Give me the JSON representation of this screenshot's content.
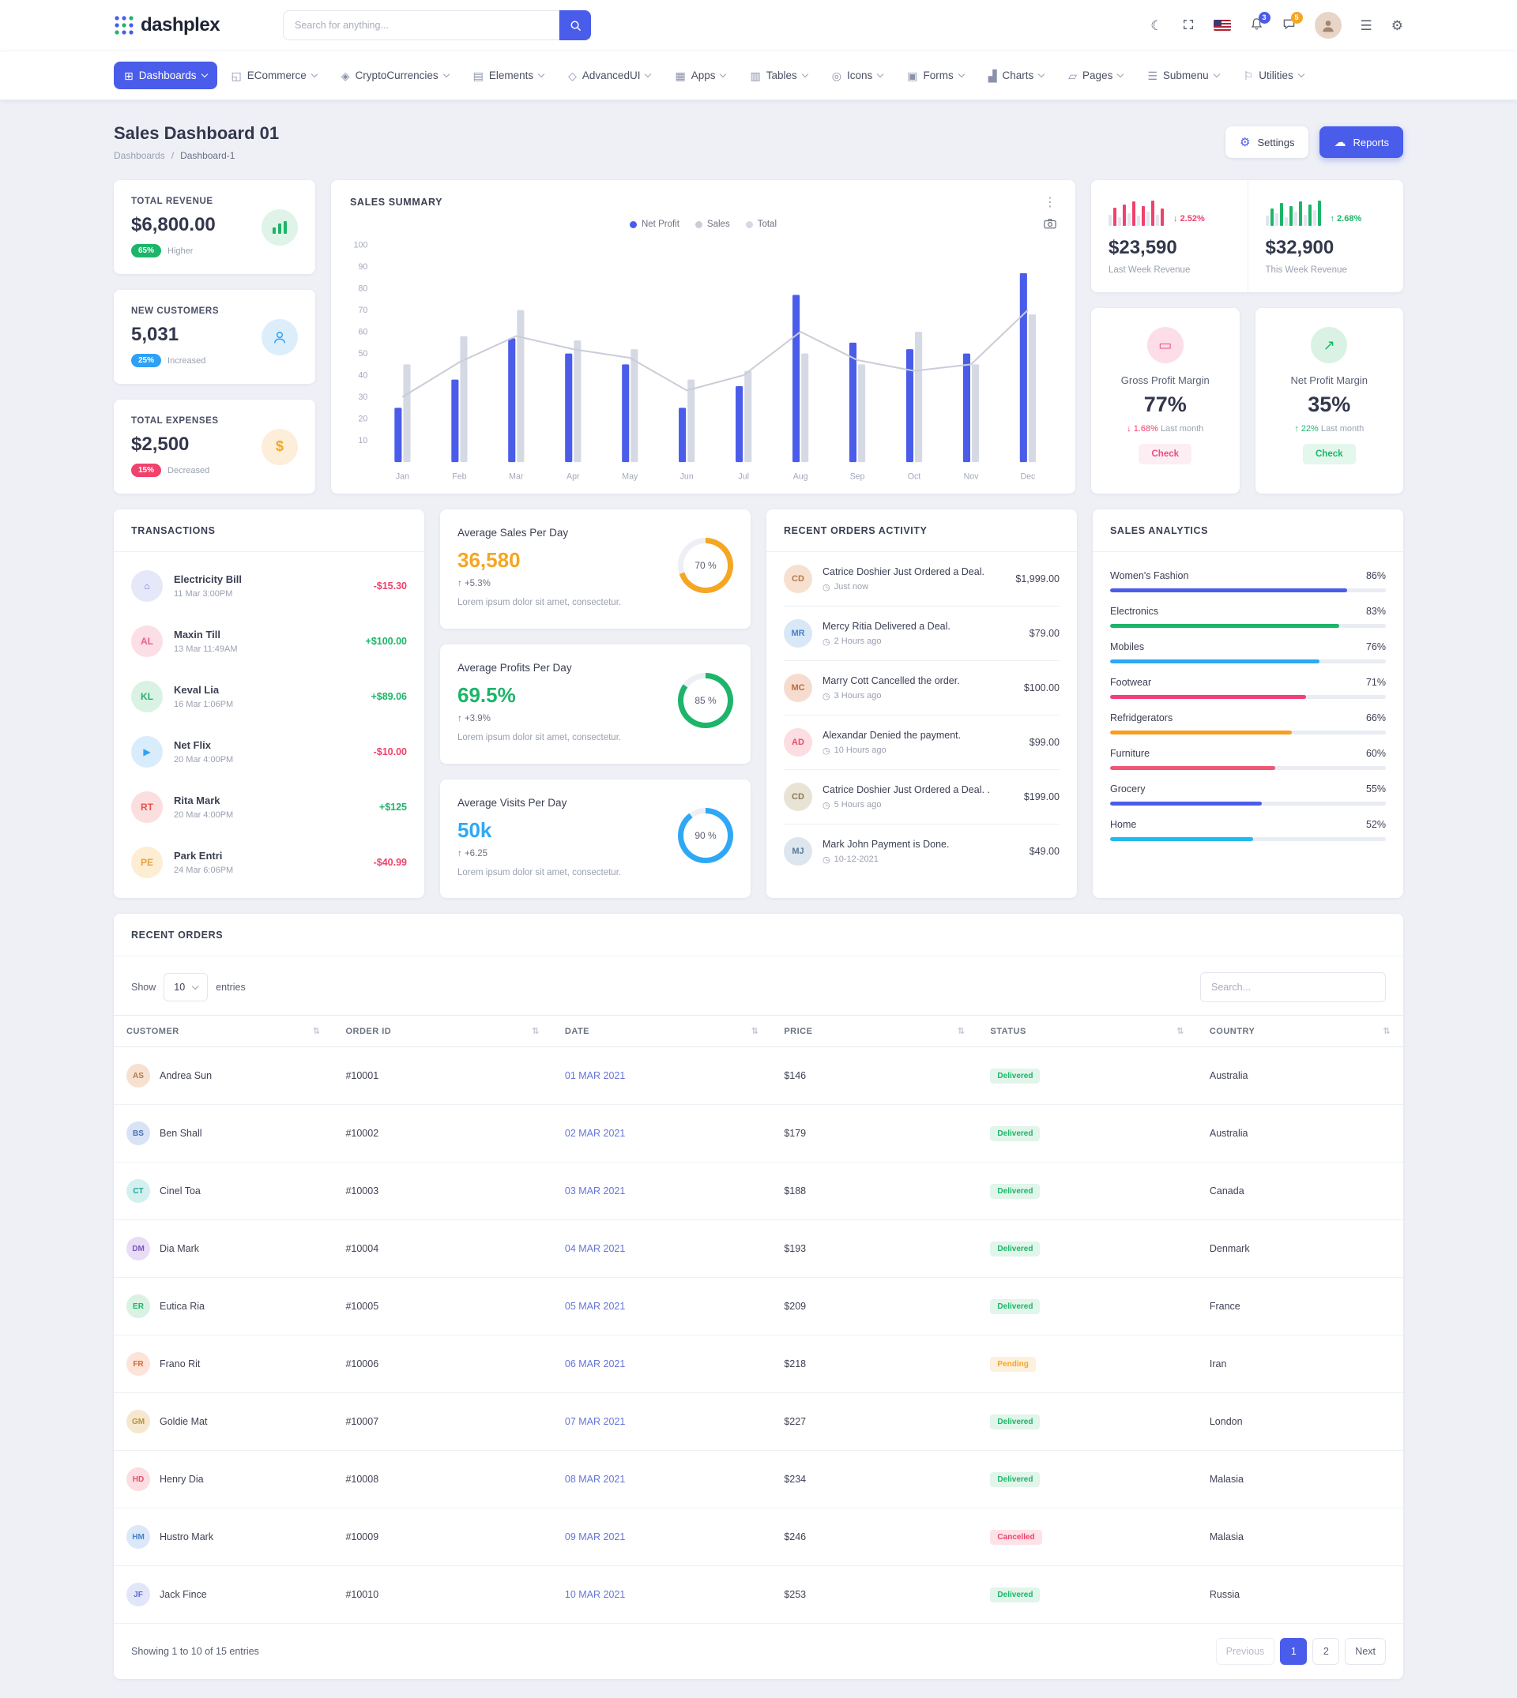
{
  "brand": {
    "name": "dashplex"
  },
  "icons": {
    "dashboards": "⊞",
    "ecommerce": "◱",
    "cryptocurrencies": "◈",
    "elements": "▤",
    "advancedui": "◇",
    "apps": "▦",
    "tables": "▥",
    "icons": "◎",
    "forms": "▣",
    "charts": "▟",
    "pages": "▱",
    "submenu": "☰",
    "utilities": "⚐",
    "menu": "☰",
    "gear": "⚙",
    "moon": "☾",
    "dots": "⋮",
    "clock": "◷",
    "sort": "⇅",
    "card": "▭",
    "trend": "↗",
    "up": "↑",
    "down": "↓",
    "dollar": "$",
    "cloud": "☁"
  },
  "topbar": {
    "search_placeholder": "Search for anything...",
    "notification_count": "3",
    "message_count": "5"
  },
  "nav": {
    "items": [
      {
        "label": "Dashboards"
      },
      {
        "label": "ECommerce"
      },
      {
        "label": "CryptoCurrencies"
      },
      {
        "label": "Elements"
      },
      {
        "label": "AdvancedUI"
      },
      {
        "label": "Apps"
      },
      {
        "label": "Tables"
      },
      {
        "label": "Icons"
      },
      {
        "label": "Forms"
      },
      {
        "label": "Charts"
      },
      {
        "label": "Pages"
      },
      {
        "label": "Submenu"
      },
      {
        "label": "Utilities"
      }
    ]
  },
  "page": {
    "title": "Sales Dashboard 01",
    "breadcrumb": [
      "Dashboards",
      "Dashboard-1"
    ],
    "settings_label": "Settings",
    "reports_label": "Reports"
  },
  "stats": {
    "cards": [
      {
        "title": "TOTAL REVENUE",
        "value": "$6,800.00",
        "badge": "65%",
        "note": "Higher"
      },
      {
        "title": "NEW CUSTOMERS",
        "value": "5,031",
        "badge": "25%",
        "note": "Increased"
      },
      {
        "title": "TOTAL EXPENSES",
        "value": "$2,500",
        "badge": "15%",
        "note": "Decreased"
      }
    ]
  },
  "sales_summary": {
    "title": "SALES SUMMARY",
    "chart_data": {
      "type": "bar",
      "title": "SALES SUMMARY",
      "categories": [
        "Jan",
        "Feb",
        "Mar",
        "Apr",
        "May",
        "Jun",
        "Jul",
        "Aug",
        "Sep",
        "Oct",
        "Nov",
        "Dec"
      ],
      "series": [
        {
          "name": "Net Profit",
          "kind": "bar",
          "color": "#4a5cea",
          "values": [
            25,
            38,
            57,
            50,
            45,
            25,
            35,
            77,
            55,
            52,
            50,
            87
          ]
        },
        {
          "name": "Sales",
          "kind": "line",
          "color": "#c9cdd8",
          "values": [
            30,
            46,
            58,
            52,
            48,
            33,
            40,
            60,
            47,
            42,
            45,
            70
          ]
        },
        {
          "name": "Total",
          "kind": "bar",
          "color": "#d5d9e4",
          "values": [
            45,
            58,
            70,
            56,
            52,
            38,
            42,
            50,
            45,
            60,
            45,
            68
          ]
        }
      ],
      "ylim": [
        0,
        100
      ],
      "yticks": [
        10,
        20,
        30,
        40,
        50,
        60,
        70,
        80,
        90,
        100
      ],
      "legend_position": "top",
      "grid": false
    }
  },
  "week_revenue": {
    "last": {
      "value": "$23,590",
      "label": "Last Week Revenue",
      "delta": "2.52%",
      "spark": {
        "values": [
          40,
          65,
          30,
          75,
          45,
          85,
          35,
          70,
          50,
          90,
          40,
          60
        ],
        "color": "#f0426c"
      }
    },
    "this": {
      "value": "$32,900",
      "label": "This Week Revenue",
      "delta": "2.68%",
      "spark": {
        "values": [
          35,
          60,
          45,
          80,
          30,
          70,
          50,
          85,
          40,
          75,
          55,
          90
        ],
        "color": "#1cb569"
      }
    }
  },
  "margins": {
    "cards": [
      {
        "title": "Gross Profit Margin",
        "value": "77%",
        "delta": "1.68%",
        "note": "Last month",
        "direction": "down",
        "button": "Check"
      },
      {
        "title": "Net Profit Margin",
        "value": "35%",
        "delta": "22%",
        "note": "Last month",
        "direction": "up",
        "button": "Check"
      }
    ]
  },
  "transactions": {
    "title": "TRANSACTIONS",
    "items": [
      {
        "name": "Electricity Bill",
        "date": "11 Mar 3:00PM",
        "amount": "-$15.30",
        "avatar": {
          "text": "⌂",
          "bg": "#e4e8f8",
          "fg": "#6575d8"
        }
      },
      {
        "name": "Maxin Till",
        "date": "13 Mar 11:49AM",
        "amount": "+$100.00",
        "avatar": {
          "text": "AL",
          "bg": "#fcdee6",
          "fg": "#ec5f8a"
        }
      },
      {
        "name": "Keval Lia",
        "date": "16 Mar 1:06PM",
        "amount": "+$89.06",
        "avatar": {
          "text": "KL",
          "bg": "#d9f2e4",
          "fg": "#27b06e"
        }
      },
      {
        "name": "Net Flix",
        "date": "20 Mar 4:00PM",
        "amount": "-$10.00",
        "avatar": {
          "text": "▶",
          "bg": "#d9ecfb",
          "fg": "#2ea0f5"
        }
      },
      {
        "name": "Rita Mark",
        "date": "20 Mar 4:00PM",
        "amount": "+$125",
        "avatar": {
          "text": "RT",
          "bg": "#fcdede",
          "fg": "#e55353"
        }
      },
      {
        "name": "Park Entri",
        "date": "24 Mar 6:06PM",
        "amount": "-$40.99",
        "avatar": {
          "text": "PE",
          "bg": "#fdedd3",
          "fg": "#e8a23c"
        }
      }
    ]
  },
  "averages": {
    "cards": [
      {
        "title": "Average Sales Per Day",
        "value": "36,580",
        "delta": "+5.3%",
        "desc": "Lorem ipsum dolor sit amet, consectetur.",
        "percent": 70,
        "percent_label": "70 %",
        "color": "#f5a623"
      },
      {
        "title": "Average Profits Per Day",
        "value": "69.5%",
        "delta": "+3.9%",
        "desc": "Lorem ipsum dolor sit amet, consectetur.",
        "percent": 85,
        "percent_label": "85 %",
        "color": "#1cb569"
      },
      {
        "title": "Average Visits Per Day",
        "value": "50k",
        "delta": "+6.25",
        "desc": "Lorem ipsum dolor sit amet, consectetur.",
        "percent": 90,
        "percent_label": "90 %",
        "color": "#2ea8f5"
      }
    ]
  },
  "activity": {
    "title": "RECENT ORDERS ACTIVITY",
    "items": [
      {
        "text": "Catrice Doshier Just Ordered a Deal.",
        "time": "Just now",
        "amount": "$1,999.00",
        "avatar": {
          "text": "CD",
          "bg": "#f7e0cf",
          "fg": "#b07a4a"
        }
      },
      {
        "text": "Mercy Ritia Delivered a Deal.",
        "time": "2 Hours ago",
        "amount": "$79.00",
        "avatar": {
          "text": "MR",
          "bg": "#d9e8f7",
          "fg": "#4a80c9"
        }
      },
      {
        "text": "Marry Cott Cancelled the order.",
        "time": "3 Hours ago",
        "amount": "$100.00",
        "avatar": {
          "text": "MC",
          "bg": "#f5dccf",
          "fg": "#c06a3a"
        }
      },
      {
        "text": "Alexandar Denied the payment.",
        "time": "10 Hours ago",
        "amount": "$99.00",
        "avatar": {
          "text": "AD",
          "bg": "#fcdde2",
          "fg": "#e54f6d"
        }
      },
      {
        "text": "Catrice Doshier Just Ordered a Deal. .",
        "time": "5 Hours ago",
        "amount": "$199.00",
        "avatar": {
          "text": "CD",
          "bg": "#e8e3d5",
          "fg": "#8a7a5a"
        }
      },
      {
        "text": "Mark John Payment is Done.",
        "time": "10-12-2021",
        "amount": "$49.00",
        "avatar": {
          "text": "MJ",
          "bg": "#dde5ee",
          "fg": "#5a7a9a"
        }
      }
    ]
  },
  "analytics": {
    "title": "SALES ANALYTICS",
    "items": [
      {
        "label": "Women's Fashion",
        "percent": 86,
        "percent_label": "86%",
        "color": "#4a5cea"
      },
      {
        "label": "Electronics",
        "percent": 83,
        "percent_label": "83%",
        "color": "#1cb569"
      },
      {
        "label": "Mobiles",
        "percent": 76,
        "percent_label": "76%",
        "color": "#2ea8f5"
      },
      {
        "label": "Footwear",
        "percent": 71,
        "percent_label": "71%",
        "color": "#f23f79"
      },
      {
        "label": "Refridgerators",
        "percent": 66,
        "percent_label": "66%",
        "color": "#f99e1f"
      },
      {
        "label": "Furniture",
        "percent": 60,
        "percent_label": "60%",
        "color": "#ef5777"
      },
      {
        "label": "Grocery",
        "percent": 55,
        "percent_label": "55%",
        "color": "#4a5cea"
      },
      {
        "label": "Home",
        "percent": 52,
        "percent_label": "52%",
        "color": "#22b8f0"
      }
    ]
  },
  "orders": {
    "title": "RECENT ORDERS",
    "show_label": "Show",
    "per_page": "10",
    "entries_label": "entries",
    "search_placeholder": "Search...",
    "columns": [
      "CUSTOMER",
      "ORDER ID",
      "DATE",
      "PRICE",
      "STATUS",
      "COUNTRY"
    ],
    "rows": [
      {
        "customer": "Andrea Sun",
        "id": "#10001",
        "date": "01 MAR 2021",
        "price": "$146",
        "status": "Delivered",
        "country": "Australia",
        "avatar": {
          "text": "AS",
          "bg": "#f7e0cf",
          "fg": "#b07a4a"
        }
      },
      {
        "customer": "Ben Shall",
        "id": "#10002",
        "date": "02 MAR 2021",
        "price": "$179",
        "status": "Delivered",
        "country": "Australia",
        "avatar": {
          "text": "BS",
          "bg": "#d8e3f5",
          "fg": "#4a6fb0"
        }
      },
      {
        "customer": "Cinel Toa",
        "id": "#10003",
        "date": "03 MAR 2021",
        "price": "$188",
        "status": "Delivered",
        "country": "Canada",
        "avatar": {
          "text": "CT",
          "bg": "#d3f0ee",
          "fg": "#18a5a0"
        }
      },
      {
        "customer": "Dia Mark",
        "id": "#10004",
        "date": "04 MAR 2021",
        "price": "$193",
        "status": "Delivered",
        "country": "Denmark",
        "avatar": {
          "text": "DM",
          "bg": "#e8ddf5",
          "fg": "#7a55c0"
        }
      },
      {
        "customer": "Eutica Ria",
        "id": "#10005",
        "date": "05 MAR 2021",
        "price": "$209",
        "status": "Delivered",
        "country": "France",
        "avatar": {
          "text": "ER",
          "bg": "#d9f2e2",
          "fg": "#1cb569"
        }
      },
      {
        "customer": "Frano Rit",
        "id": "#10006",
        "date": "06 MAR 2021",
        "price": "$218",
        "status": "Pending",
        "country": "Iran",
        "avatar": {
          "text": "FR",
          "bg": "#fde3d8",
          "fg": "#d06a3a"
        }
      },
      {
        "customer": "Goldie Mat",
        "id": "#10007",
        "date": "07 MAR 2021",
        "price": "$227",
        "status": "Delivered",
        "country": "London",
        "avatar": {
          "text": "GM",
          "bg": "#f5e8cf",
          "fg": "#b8923c"
        }
      },
      {
        "customer": "Henry Dia",
        "id": "#10008",
        "date": "08 MAR 2021",
        "price": "$234",
        "status": "Delivered",
        "country": "Malasia",
        "avatar": {
          "text": "HD",
          "bg": "#fcdde2",
          "fg": "#e54f6d"
        }
      },
      {
        "customer": "Hustro Mark",
        "id": "#10009",
        "date": "09 MAR 2021",
        "price": "$246",
        "status": "Cancelled",
        "country": "Malasia",
        "avatar": {
          "text": "HM",
          "bg": "#dbe8f7",
          "fg": "#4a80c9"
        }
      },
      {
        "customer": "Jack Fince",
        "id": "#10010",
        "date": "10 MAR 2021",
        "price": "$253",
        "status": "Delivered",
        "country": "Russia",
        "avatar": {
          "text": "JF",
          "bg": "#e2e6f9",
          "fg": "#5a6bd8"
        }
      }
    ],
    "footer_text": "Showing 1 to 10 of 15 entries",
    "pagination": {
      "prev": "Previous",
      "p1": "1",
      "p2": "2",
      "next": "Next"
    }
  }
}
